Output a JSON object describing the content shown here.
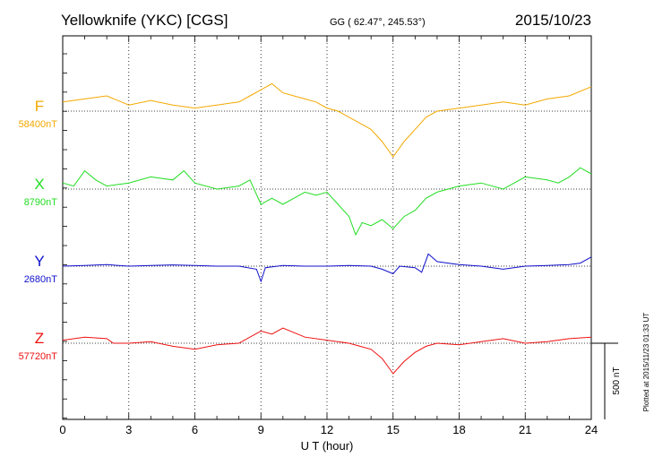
{
  "header": {
    "station": "Yellowknife (YKC)  [CGS]",
    "coords": "GG ( 62.47°, 245.53°)",
    "date": "2015/10/23"
  },
  "footer": {
    "plotted_note": "Plotted at 2015/11/23 01:33 UT"
  },
  "chart_data": {
    "type": "line",
    "xlabel": "U T (hour)",
    "xlim": [
      0,
      24
    ],
    "xticks": [
      "0",
      "3",
      "6",
      "9",
      "12",
      "15",
      "18",
      "21",
      "24"
    ],
    "scale_bar": {
      "label": "500 nT",
      "value_nT": 500
    },
    "grid": "dotted vertical every 3 hours, dotted baseline per component",
    "series": [
      {
        "name": "F",
        "baseline_label": "58400nT",
        "baseline_nT": 58400,
        "color": "#f4a800",
        "points": [
          [
            0,
            58430
          ],
          [
            1,
            58440
          ],
          [
            2,
            58450
          ],
          [
            3,
            58420
          ],
          [
            4,
            58435
          ],
          [
            5,
            58420
          ],
          [
            6,
            58410
          ],
          [
            7,
            58420
          ],
          [
            8,
            58430
          ],
          [
            8.5,
            58450
          ],
          [
            9,
            58470
          ],
          [
            9.5,
            58490
          ],
          [
            10,
            58460
          ],
          [
            10.5,
            58450
          ],
          [
            11,
            58440
          ],
          [
            11.5,
            58430
          ],
          [
            12,
            58410
          ],
          [
            12.5,
            58400
          ],
          [
            13,
            58380
          ],
          [
            13.5,
            58360
          ],
          [
            14,
            58340
          ],
          [
            14.5,
            58300
          ],
          [
            15,
            58250
          ],
          [
            15.5,
            58300
          ],
          [
            16,
            58340
          ],
          [
            16.5,
            58380
          ],
          [
            17,
            58400
          ],
          [
            18,
            58410
          ],
          [
            19,
            58420
          ],
          [
            20,
            58430
          ],
          [
            21,
            58420
          ],
          [
            22,
            58440
          ],
          [
            23,
            58450
          ],
          [
            24,
            58480
          ]
        ]
      },
      {
        "name": "X",
        "baseline_label": "8790nT",
        "baseline_nT": 8790,
        "color": "#22dd22",
        "points": [
          [
            0,
            8810
          ],
          [
            0.5,
            8800
          ],
          [
            1,
            8850
          ],
          [
            1.5,
            8820
          ],
          [
            2,
            8800
          ],
          [
            3,
            8810
          ],
          [
            4,
            8830
          ],
          [
            5,
            8820
          ],
          [
            5.5,
            8850
          ],
          [
            6,
            8810
          ],
          [
            7,
            8790
          ],
          [
            8,
            8800
          ],
          [
            8.5,
            8820
          ],
          [
            9,
            8740
          ],
          [
            9.5,
            8760
          ],
          [
            10,
            8740
          ],
          [
            10.5,
            8760
          ],
          [
            11,
            8780
          ],
          [
            11.5,
            8770
          ],
          [
            12,
            8780
          ],
          [
            12.5,
            8740
          ],
          [
            13,
            8700
          ],
          [
            13.3,
            8640
          ],
          [
            13.6,
            8680
          ],
          [
            14,
            8670
          ],
          [
            14.5,
            8690
          ],
          [
            15,
            8660
          ],
          [
            15.5,
            8700
          ],
          [
            16,
            8720
          ],
          [
            16.5,
            8760
          ],
          [
            17,
            8780
          ],
          [
            17.5,
            8790
          ],
          [
            18,
            8800
          ],
          [
            19,
            8810
          ],
          [
            20,
            8790
          ],
          [
            20.5,
            8810
          ],
          [
            21,
            8830
          ],
          [
            22,
            8820
          ],
          [
            22.5,
            8810
          ],
          [
            23,
            8830
          ],
          [
            23.5,
            8860
          ],
          [
            24,
            8840
          ]
        ]
      },
      {
        "name": "Y",
        "baseline_label": "2680nT",
        "baseline_nT": 2680,
        "color": "#1010cc",
        "points": [
          [
            0,
            2680
          ],
          [
            1,
            2682
          ],
          [
            2,
            2685
          ],
          [
            3,
            2680
          ],
          [
            4,
            2682
          ],
          [
            5,
            2684
          ],
          [
            6,
            2682
          ],
          [
            7,
            2680
          ],
          [
            8,
            2680
          ],
          [
            8.8,
            2670
          ],
          [
            9,
            2630
          ],
          [
            9.2,
            2675
          ],
          [
            10,
            2682
          ],
          [
            11,
            2680
          ],
          [
            12,
            2680
          ],
          [
            13,
            2682
          ],
          [
            14,
            2680
          ],
          [
            14.5,
            2670
          ],
          [
            15,
            2655
          ],
          [
            15.3,
            2680
          ],
          [
            16,
            2675
          ],
          [
            16.3,
            2660
          ],
          [
            16.6,
            2720
          ],
          [
            17,
            2695
          ],
          [
            17.5,
            2690
          ],
          [
            18,
            2685
          ],
          [
            19,
            2680
          ],
          [
            20,
            2670
          ],
          [
            21,
            2680
          ],
          [
            22,
            2682
          ],
          [
            23,
            2685
          ],
          [
            23.5,
            2690
          ],
          [
            24,
            2710
          ]
        ]
      },
      {
        "name": "Z",
        "baseline_label": "57720nT",
        "baseline_nT": 57720,
        "color": "#ee1111",
        "points": [
          [
            0,
            57730
          ],
          [
            1,
            57740
          ],
          [
            2,
            57735
          ],
          [
            2.3,
            57720
          ],
          [
            3,
            57720
          ],
          [
            4,
            57725
          ],
          [
            5,
            57710
          ],
          [
            6,
            57700
          ],
          [
            7,
            57715
          ],
          [
            8,
            57720
          ],
          [
            8.5,
            57740
          ],
          [
            9,
            57760
          ],
          [
            9.5,
            57750
          ],
          [
            10,
            57770
          ],
          [
            11,
            57740
          ],
          [
            12,
            57730
          ],
          [
            13,
            57720
          ],
          [
            13.5,
            57710
          ],
          [
            14,
            57700
          ],
          [
            14.5,
            57670
          ],
          [
            15,
            57620
          ],
          [
            15.5,
            57660
          ],
          [
            16,
            57690
          ],
          [
            16.5,
            57710
          ],
          [
            17,
            57720
          ],
          [
            18,
            57715
          ],
          [
            19,
            57725
          ],
          [
            20,
            57735
          ],
          [
            21,
            57720
          ],
          [
            22,
            57725
          ],
          [
            23,
            57735
          ],
          [
            24,
            57740
          ]
        ]
      }
    ]
  }
}
